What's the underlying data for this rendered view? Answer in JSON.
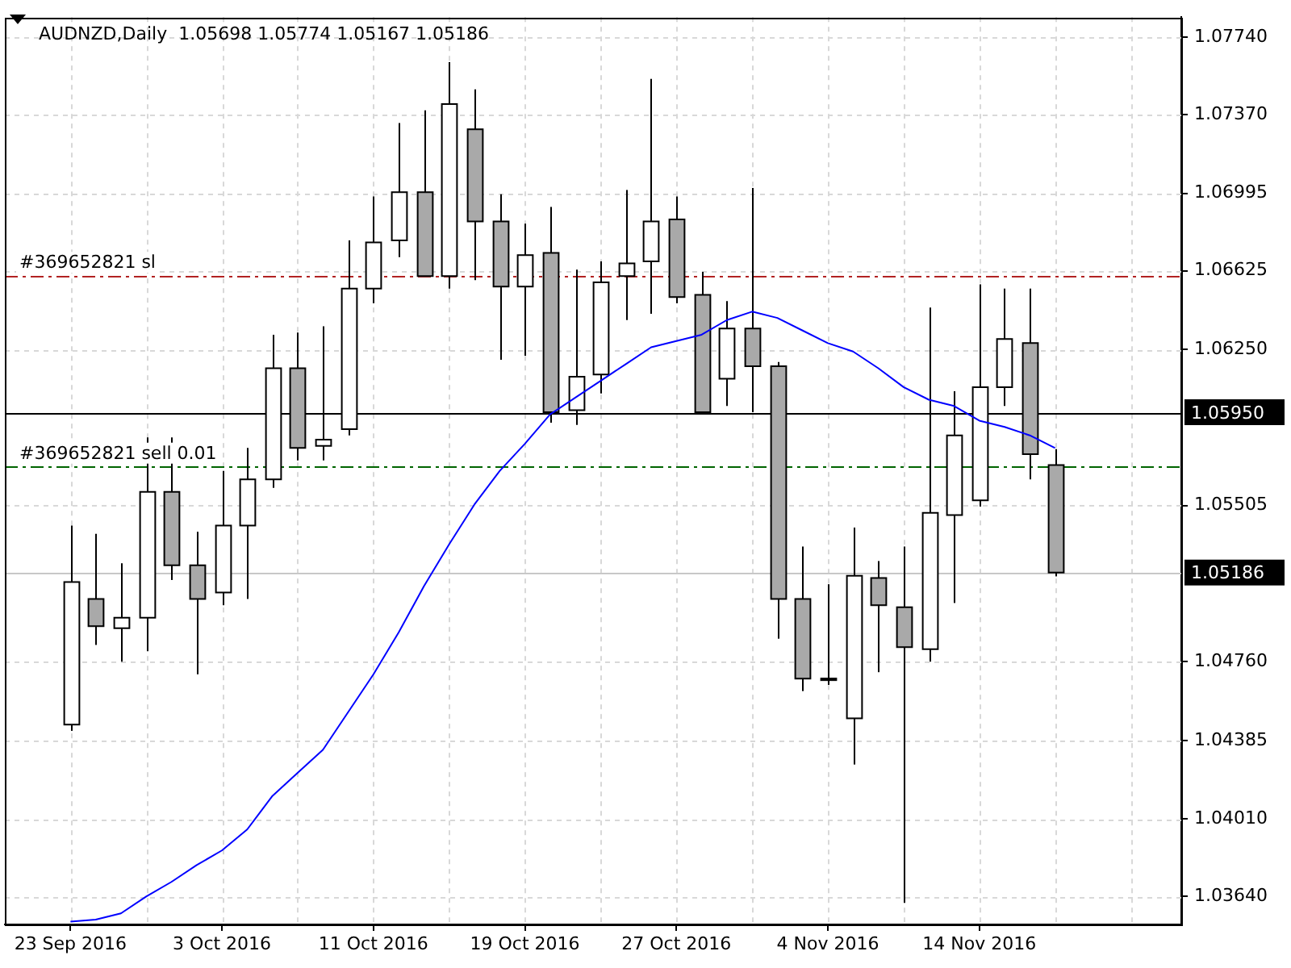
{
  "chart_data": {
    "type": "candlestick",
    "title": "AUDNZD,Daily  1.05698 1.05774 1.05167 1.05186",
    "categories": [
      "23 Sep 2016",
      null,
      null,
      null,
      null,
      null,
      "3 Oct 2016",
      null,
      null,
      null,
      null,
      null,
      "11 Oct 2016",
      null,
      null,
      null,
      null,
      null,
      "19 Oct 2016",
      null,
      null,
      null,
      null,
      null,
      "27 Oct 2016",
      null,
      null,
      null,
      null,
      null,
      "4 Nov 2016",
      null,
      null,
      null,
      null,
      null,
      "14 Nov 2016",
      null,
      null,
      null
    ],
    "ohlc": [
      [
        1.0446,
        1.0541,
        1.0443,
        1.0514
      ],
      [
        1.0506,
        1.0537,
        1.0484,
        1.0493
      ],
      [
        1.0492,
        1.0523,
        1.0476,
        1.0497
      ],
      [
        1.0497,
        1.0583,
        1.0481,
        1.0557
      ],
      [
        1.0557,
        1.0583,
        1.0515,
        1.0522
      ],
      [
        1.0522,
        1.0538,
        1.047,
        1.0506
      ],
      [
        1.0509,
        1.0567,
        1.0503,
        1.0541
      ],
      [
        1.0541,
        1.0578,
        1.0506,
        1.0563
      ],
      [
        1.0563,
        1.0632,
        1.0559,
        1.0616
      ],
      [
        1.0616,
        1.0633,
        1.0572,
        1.0578
      ],
      [
        1.0579,
        1.0636,
        1.0572,
        1.0582
      ],
      [
        1.0587,
        1.0677,
        1.0584,
        1.0654
      ],
      [
        1.0654,
        1.0698,
        1.0647,
        1.0676
      ],
      [
        1.0677,
        1.0733,
        1.0669,
        1.07
      ],
      [
        1.07,
        1.0739,
        1.066,
        1.066
      ],
      [
        1.066,
        1.0762,
        1.0654,
        1.0742
      ],
      [
        1.073,
        1.0749,
        1.0658,
        1.0686
      ],
      [
        1.0686,
        1.0699,
        1.062,
        1.0655
      ],
      [
        1.0655,
        1.0685,
        1.0622,
        1.067
      ],
      [
        1.0671,
        1.0693,
        1.059,
        1.0595
      ],
      [
        1.0596,
        1.0663,
        1.0589,
        1.0612
      ],
      [
        1.0613,
        1.0667,
        1.0604,
        1.0657
      ],
      [
        1.066,
        1.0701,
        1.0639,
        1.0666
      ],
      [
        1.0667,
        1.0754,
        1.0642,
        1.0686
      ],
      [
        1.0687,
        1.0698,
        1.0647,
        1.065
      ],
      [
        1.0651,
        1.0662,
        1.0595,
        1.0595
      ],
      [
        1.0611,
        1.0648,
        1.0598,
        1.0635
      ],
      [
        1.0635,
        1.0702,
        1.0595,
        1.0617
      ],
      [
        1.0617,
        1.0619,
        1.0487,
        1.0506
      ],
      [
        1.0506,
        1.0531,
        1.0462,
        1.0468
      ],
      [
        1.0468,
        1.0513,
        1.0465,
        1.0468
      ],
      [
        1.0449,
        1.054,
        1.0427,
        1.0517
      ],
      [
        1.0516,
        1.0524,
        1.0471,
        1.0503
      ],
      [
        1.0502,
        1.0531,
        1.0361,
        1.0483
      ],
      [
        1.0482,
        1.0645,
        1.0476,
        1.0547
      ],
      [
        1.0546,
        1.0605,
        1.0504,
        1.0584
      ],
      [
        1.0553,
        1.0656,
        1.055,
        1.0607
      ],
      [
        1.0607,
        1.0654,
        1.0598,
        1.063
      ],
      [
        1.0628,
        1.0654,
        1.0563,
        1.0575
      ],
      [
        1.05698,
        1.05774,
        1.05167,
        1.05186
      ]
    ],
    "series": [
      {
        "type": "line",
        "color": "#0000ff",
        "values": [
          1.0352,
          1.0353,
          1.0356,
          1.0364,
          1.0371,
          1.0379,
          1.0386,
          1.0396,
          1.0412,
          1.0423,
          1.0434,
          1.0452,
          1.047,
          1.049,
          1.0512,
          1.0532,
          1.0551,
          1.0567,
          1.058,
          1.0594,
          1.0602,
          1.061,
          1.0618,
          1.0626,
          1.0629,
          1.0632,
          1.0639,
          1.0643,
          1.064,
          1.0634,
          1.0628,
          1.0624,
          1.0616,
          1.0607,
          1.0601,
          1.0598,
          1.0591,
          1.0588,
          1.0584,
          1.0578
        ]
      }
    ],
    "ylim": [
      1.03507,
      1.07835
    ],
    "yticks": [
      {
        "value": 1.0364,
        "label": "1.03640"
      },
      {
        "value": 1.0401,
        "label": "1.04010"
      },
      {
        "value": 1.04385,
        "label": "1.04385"
      },
      {
        "value": 1.0476,
        "label": "1.04760"
      },
      {
        "value": 1.05505,
        "label": "1.05505"
      },
      {
        "value": 1.0625,
        "label": "1.06250"
      },
      {
        "value": 1.06625,
        "label": "1.06625"
      },
      {
        "value": 1.06995,
        "label": "1.06995"
      },
      {
        "value": 1.0737,
        "label": "1.07370"
      },
      {
        "value": 1.0774,
        "label": "1.07740"
      }
    ],
    "grid": true,
    "ref_lines": [
      {
        "axis": "y",
        "value": 1.066,
        "label": "#369652821 sl",
        "color": "#b22222",
        "line_style": "dashed"
      },
      {
        "axis": "y",
        "value": 1.0569,
        "label": "#369652821 sell 0.01",
        "color": "#006400",
        "line_style": "dashed"
      },
      {
        "axis": "y",
        "value": 1.0595,
        "label": "1.05950",
        "color": "#000000",
        "line_style": "solid"
      },
      {
        "axis": "y",
        "value": 1.05186,
        "label": "1.05186",
        "color": "#c8c8c8",
        "line_style": "solid"
      }
    ]
  }
}
